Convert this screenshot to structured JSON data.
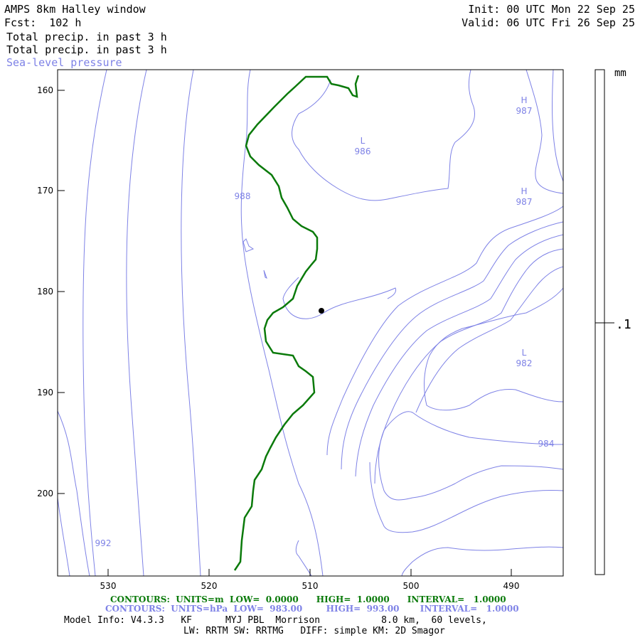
{
  "header": {
    "title": "AMPS 8km Halley window",
    "forecast": "Fcst:  102 h",
    "init": "Init: 00 UTC Mon 22 Sep 25",
    "valid": "Valid: 06 UTC Fri 26 Sep 25"
  },
  "fields": {
    "field1": "Total precip. in past 3 h",
    "field2": "Total precip. in past 3 h",
    "field3": "Sea-level pressure"
  },
  "colors": {
    "pressure": "#7e82e6",
    "precip": "#0a7a0a",
    "frame": "#000000",
    "station": "#000000"
  },
  "axes": {
    "x_ticks": [
      "530",
      "520",
      "510",
      "500",
      "490"
    ],
    "y_ticks": [
      "160",
      "170",
      "180",
      "190",
      "200"
    ]
  },
  "isobar_labels": [
    {
      "text": "988"
    },
    {
      "text": "992"
    },
    {
      "text": "984"
    }
  ],
  "pressure_centers": [
    {
      "type": "L",
      "value": "986"
    },
    {
      "type": "H",
      "value": "987"
    },
    {
      "type": "H",
      "value": "987"
    },
    {
      "type": "L",
      "value": "982"
    }
  ],
  "colorbar": {
    "unit": "mm",
    "level": ".1"
  },
  "footer": {
    "green_contours": {
      "c1": "CONTOURS:",
      "c2": "UNITS=m",
      "c3": "LOW=  0.0000",
      "c4": "HIGH=  1.0000",
      "c5": "INTERVAL=   1.0000"
    },
    "blue_contours": {
      "c1": "CONTOURS:",
      "c2": "UNITS=hPa",
      "c3": "LOW=  983.00",
      "c4": "HIGH=  993.00",
      "c5": "INTERVAL=   1.0000"
    },
    "info1": "Model Info: V4.3.3   KF      MYJ PBL  Morrison           8.0 km,  60 levels,",
    "info2": "LW: RRTM SW: RRTMG   DIFF: simple KM: 2D Smagor"
  }
}
